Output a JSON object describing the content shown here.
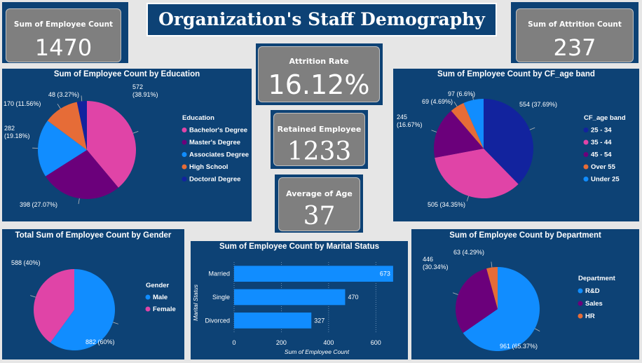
{
  "title": "Organization's Staff Demography",
  "kpis": {
    "employee_count": {
      "label": "Sum of Employee Count",
      "value": "1470"
    },
    "attrition_count": {
      "label": "Sum of Attrition Count",
      "value": "237"
    },
    "attrition_rate": {
      "label": "Attrition Rate",
      "value": "16.12%"
    },
    "retained": {
      "label": "Retained Employee",
      "value": "1233"
    },
    "avg_age": {
      "label": "Average of Age",
      "value": "37"
    }
  },
  "colors": {
    "panel": "#0d4275",
    "pink": "#e044a7",
    "purple": "#6b007b",
    "blue": "#118dff",
    "orange": "#e66c37",
    "navy": "#12239e"
  },
  "chart_data": [
    {
      "id": "education",
      "type": "pie",
      "title": "Sum of Employee Count by Education",
      "legend_title": "Education",
      "legend_position": "right",
      "slices": [
        {
          "name": "Bachelor's Degree",
          "value": 572,
          "label": "572 (38.91%)",
          "color": "#e044a7"
        },
        {
          "name": "Master's Degree",
          "value": 398,
          "label": "398 (27.07%)",
          "color": "#6b007b"
        },
        {
          "name": "Associates Degree",
          "value": 282,
          "label": "282 (19.18%)",
          "color": "#118dff"
        },
        {
          "name": "High School",
          "value": 170,
          "label": "170 (11.56%)",
          "color": "#e66c37"
        },
        {
          "name": "Doctoral Degree",
          "value": 48,
          "label": "48 (3.27%)",
          "color": "#12239e"
        }
      ]
    },
    {
      "id": "age_band",
      "type": "pie",
      "title": "Sum of Employee Count by CF_age band",
      "legend_title": "CF_age band",
      "legend_position": "right",
      "slices": [
        {
          "name": "25 - 34",
          "value": 554,
          "label": "554 (37.69%)",
          "color": "#12239e"
        },
        {
          "name": "35 - 44",
          "value": 505,
          "label": "505 (34.35%)",
          "color": "#e044a7"
        },
        {
          "name": "45 - 54",
          "value": 245,
          "label": "245 (16.67%)",
          "color": "#6b007b"
        },
        {
          "name": "Over 55",
          "value": 69,
          "label": "69 (4.69%)",
          "color": "#e66c37"
        },
        {
          "name": "Under 25",
          "value": 97,
          "label": "97 (6.6%)",
          "color": "#118dff"
        }
      ]
    },
    {
      "id": "gender",
      "type": "pie",
      "title": "Total Sum of Employee Count by Gender",
      "legend_title": "Gender",
      "legend_position": "right",
      "slices": [
        {
          "name": "Male",
          "value": 882,
          "label": "882 (60%)",
          "color": "#118dff"
        },
        {
          "name": "Female",
          "value": 588,
          "label": "588 (40%)",
          "color": "#e044a7"
        }
      ]
    },
    {
      "id": "marital",
      "type": "bar",
      "orientation": "horizontal",
      "title": "Sum of Employee Count by Marital Status",
      "categories": [
        "Married",
        "Single",
        "Divorced"
      ],
      "values": [
        673,
        470,
        327
      ],
      "xlabel": "Sum of Employee Count",
      "ylabel": "Marital Status",
      "xlim": [
        0,
        700
      ],
      "xticks": [
        0,
        200,
        400,
        600
      ],
      "grid": true,
      "color": "#118dff"
    },
    {
      "id": "department",
      "type": "pie",
      "title": "Sum of Employee Count by Department",
      "legend_title": "Department",
      "legend_position": "right",
      "slices": [
        {
          "name": "R&D",
          "value": 961,
          "label": "961 (65.37%)",
          "color": "#118dff"
        },
        {
          "name": "Sales",
          "value": 446,
          "label": "446 (30.34%)",
          "color": "#6b007b"
        },
        {
          "name": "HR",
          "value": 63,
          "label": "63 (4.29%)",
          "color": "#e66c37"
        }
      ]
    }
  ]
}
